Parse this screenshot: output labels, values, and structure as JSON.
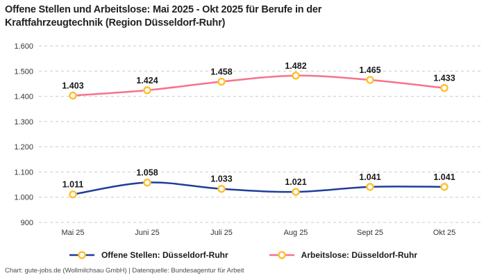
{
  "title": "Offene Stellen und Arbeitslose: Mai 2025 - Okt 2025 für Berufe in der Kraftfahrzeugtechnik (Region Düsseldorf-Ruhr)",
  "footer": "Chart: gute-jobs.de (Wollmilchsau GmbH) | Datenquelle: Bundesagentur für Arbeit",
  "chart_data": {
    "type": "line",
    "categories": [
      "Mai 25",
      "Juni 25",
      "Juli 25",
      "Aug 25",
      "Sept 25",
      "Okt 25"
    ],
    "series": [
      {
        "id": "offene-stellen",
        "name": "Offene Stellen: Düsseldorf-Ruhr",
        "color": "#1f3d99",
        "values": [
          1011,
          1058,
          1033,
          1021,
          1041,
          1041
        ],
        "labels": [
          "1.011",
          "1.058",
          "1.033",
          "1.021",
          "1.041",
          "1.041"
        ]
      },
      {
        "id": "arbeitslose",
        "name": "Arbeitslose: Düsseldorf-Ruhr",
        "color": "#f9718b",
        "values": [
          1403,
          1424,
          1458,
          1482,
          1465,
          1433
        ],
        "labels": [
          "1.403",
          "1.424",
          "1.458",
          "1.482",
          "1.465",
          "1.433"
        ]
      }
    ],
    "ylim": [
      900,
      1600
    ],
    "yticks": [
      {
        "value": 900,
        "label": "900"
      },
      {
        "value": 1000,
        "label": "1.000"
      },
      {
        "value": 1100,
        "label": "1.100"
      },
      {
        "value": 1200,
        "label": "1.200"
      },
      {
        "value": 1300,
        "label": "1.300"
      },
      {
        "value": 1400,
        "label": "1.400"
      },
      {
        "value": 1500,
        "label": "1.500"
      },
      {
        "value": 1600,
        "label": "1.600"
      }
    ],
    "grid": "dashed horizontal",
    "legend_position": "bottom",
    "colors": {
      "grid": "#c9c9c9",
      "marker_fill": "#ffffff",
      "marker_ring": "#fdc131"
    }
  }
}
